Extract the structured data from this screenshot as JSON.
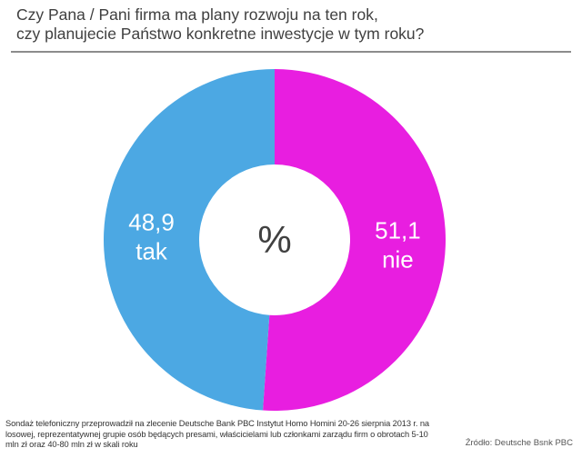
{
  "title_lines": [
    "Czy Pana / Pani firma ma plany rozwoju na ten rok,",
    "czy planujecie Państwo konkretne  inwestycje w tym roku?"
  ],
  "chart_data": {
    "type": "pie",
    "donut": true,
    "center_label": "%",
    "slices": [
      {
        "label": "nie",
        "value": 51.1,
        "value_text": "51,1",
        "color": "#e81ee0"
      },
      {
        "label": "tak",
        "value": 48.9,
        "value_text": "48,9",
        "color": "#4ca8e3"
      }
    ]
  },
  "footnote": "Sondaż telefoniczny przeprowadził na zlecenie Deutsche Bank PBC Instytut Homo Homini 20-26 sierpnia 2013 r. na losowej, reprezentatywnej grupie osób będących presami, właścicielami lub członkami zarządu firm o obrotach 5-10 mln zł oraz 40-80 mln zł w skali roku",
  "source": "Źródło: Deutsche Bsnk PBC"
}
